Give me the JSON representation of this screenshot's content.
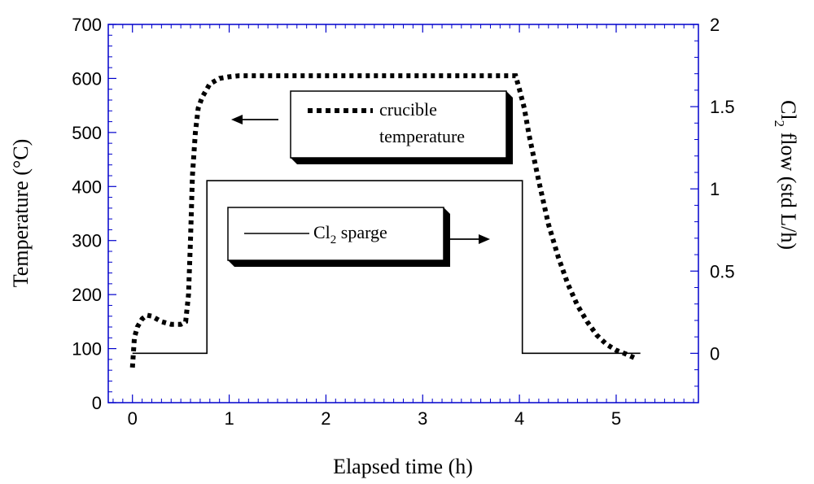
{
  "chart_data": {
    "type": "line",
    "title": "",
    "xlabel": "Elapsed time (h)",
    "ylabel": "Temperature (°C)",
    "y2label": {
      "prefix": "Cl",
      "sub": "2",
      "suffix": " flow (std L/h)"
    },
    "xlim": [
      -0.25,
      5.85
    ],
    "ylim": [
      0,
      700
    ],
    "y2lim": [
      -0.3,
      2.0
    ],
    "x_ticks": [
      0,
      1,
      2,
      3,
      4,
      5
    ],
    "y_ticks": [
      0,
      100,
      200,
      300,
      400,
      500,
      600,
      700
    ],
    "y2_ticks": [
      0,
      0.5,
      1,
      1.5,
      2
    ],
    "y2_tick_labels": [
      "0",
      "0.5",
      "1",
      "1.5",
      "2"
    ],
    "colors": {
      "frame": "#0000cc",
      "series": "#000000"
    },
    "series": [
      {
        "key": "temperature",
        "axis": "left",
        "style": "dotted",
        "x": [
          0.0,
          0.02,
          0.05,
          0.1,
          0.15,
          0.2,
          0.3,
          0.4,
          0.5,
          0.55,
          0.58,
          0.6,
          0.62,
          0.65,
          0.68,
          0.72,
          0.8,
          0.9,
          1.0,
          1.1,
          1.3,
          2.0,
          3.0,
          3.9,
          3.96,
          4.0,
          4.05,
          4.1,
          4.2,
          4.3,
          4.4,
          4.5,
          4.6,
          4.7,
          4.8,
          4.9,
          5.0,
          5.1,
          5.2
        ],
        "y": [
          65,
          120,
          140,
          155,
          162,
          160,
          150,
          145,
          145,
          150,
          200,
          300,
          420,
          500,
          545,
          565,
          590,
          600,
          603,
          605,
          605,
          605,
          605,
          605,
          605,
          580,
          545,
          495,
          410,
          330,
          270,
          220,
          180,
          150,
          125,
          108,
          97,
          90,
          82
        ]
      },
      {
        "key": "cl2",
        "axis": "right",
        "style": "solid",
        "x": [
          0.0,
          0.77,
          0.77,
          4.03,
          4.03,
          5.25
        ],
        "y": [
          0,
          0,
          1.05,
          1.05,
          0,
          0
        ]
      }
    ],
    "legends": {
      "temperature": {
        "line1": "crucible",
        "line2": "temperature",
        "arrow": "left"
      },
      "cl2": {
        "prefix": "Cl",
        "sub": "2",
        "suffix": " sparge",
        "arrow": "right"
      }
    }
  }
}
